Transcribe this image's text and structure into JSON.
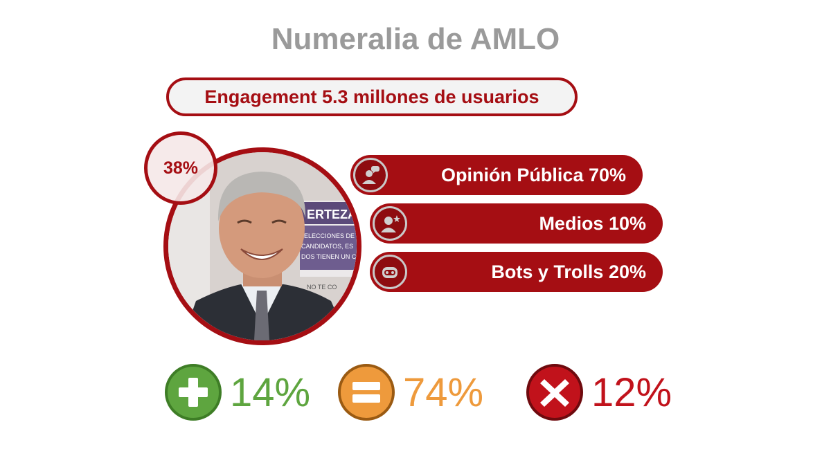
{
  "title": "Numeralia de AMLO",
  "engagement": "Engagement 5.3 millones de usuarios",
  "approval_badge": "38%",
  "photo": {
    "banner_lines": [
      "ERTEZA",
      "ELECCIONES DE",
      "CANDIDATOS, ES",
      "DOS TIENEN UN C",
      "NO TE CO"
    ]
  },
  "breakdown": [
    {
      "label": "Opinión Pública 70%",
      "icon": "speech-user-icon"
    },
    {
      "label": "Medios 10%",
      "icon": "person-star-icon"
    },
    {
      "label": "Bots y Trolls 20%",
      "icon": "robot-icon"
    }
  ],
  "sentiment": [
    {
      "value": "14%",
      "icon": "plus-icon",
      "color": "#5ea53f"
    },
    {
      "value": "74%",
      "icon": "equals-icon",
      "color": "#ee9a3c"
    },
    {
      "value": "12%",
      "icon": "x-icon",
      "color": "#c1121b"
    }
  ],
  "colors": {
    "accent": "#a50e13",
    "title": "#9a9a9a"
  }
}
